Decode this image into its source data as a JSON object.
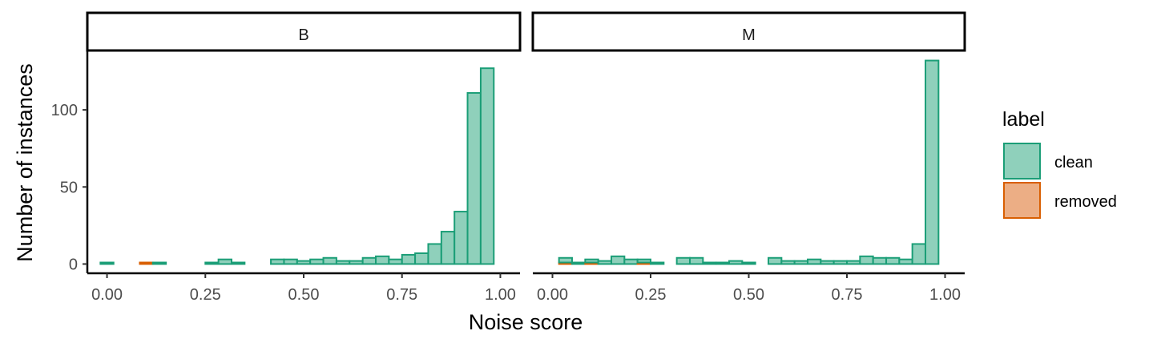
{
  "chart_data": {
    "type": "bar",
    "subtype": "faceted histogram (stacked)",
    "xlabel": "Noise score",
    "ylabel": "Number of instances",
    "x_ticks": [
      0,
      0.25,
      0.5,
      0.75,
      1
    ],
    "x_tick_labels": [
      "0.00",
      "0.25",
      "0.50",
      "0.75",
      "1.00"
    ],
    "y_ticks": [
      0,
      50,
      100
    ],
    "y_tick_labels": [
      "0",
      "50",
      "100"
    ],
    "xlim": [
      -0.05,
      1.05
    ],
    "ylim": [
      -6,
      138
    ],
    "bin_width": 0.0333,
    "grid": false,
    "legend": {
      "title": "label",
      "position": "right",
      "entries": [
        {
          "name": "clean",
          "fill": "#8fd0bb",
          "stroke": "#1b9e77"
        },
        {
          "name": "removed",
          "fill": "#ecae85",
          "stroke": "#d95f02"
        }
      ]
    },
    "colors": {
      "clean_fill": "#8fd0bb",
      "clean_stroke": "#1b9e77",
      "removed_fill": "#ecae85",
      "removed_stroke": "#d95f02",
      "strip_border": "#000000"
    },
    "panels": [
      {
        "strip": "B",
        "x": [
          0.0,
          0.0333,
          0.0667,
          0.1,
          0.1333,
          0.1667,
          0.2,
          0.2333,
          0.2667,
          0.3,
          0.3333,
          0.3667,
          0.4,
          0.4333,
          0.4667,
          0.5,
          0.5333,
          0.5667,
          0.6,
          0.6333,
          0.6667,
          0.7,
          0.7333,
          0.7667,
          0.8,
          0.8333,
          0.8667,
          0.9,
          0.9333,
          0.9667,
          1.0
        ],
        "series": [
          {
            "name": "clean",
            "values": [
              1,
              0,
              0,
              0,
              1,
              0,
              0,
              0,
              1,
              3,
              1,
              0,
              0,
              3,
              3,
              2,
              3,
              4,
              2,
              2,
              4,
              5,
              3,
              6,
              7,
              13,
              21,
              34,
              111,
              127,
              0
            ]
          },
          {
            "name": "removed",
            "values": [
              0,
              0,
              0,
              1,
              0,
              0,
              0,
              0,
              0,
              0,
              0,
              0,
              0,
              0,
              0,
              0,
              0,
              0,
              0,
              0,
              0,
              0,
              0,
              0,
              0,
              0,
              0,
              0,
              0,
              0,
              0
            ]
          }
        ]
      },
      {
        "strip": "M",
        "x": [
          0.0,
          0.0333,
          0.0667,
          0.1,
          0.1333,
          0.1667,
          0.2,
          0.2333,
          0.2667,
          0.3,
          0.3333,
          0.3667,
          0.4,
          0.4333,
          0.4667,
          0.5,
          0.5333,
          0.5667,
          0.6,
          0.6333,
          0.6667,
          0.7,
          0.7333,
          0.7667,
          0.8,
          0.8333,
          0.8667,
          0.9,
          0.9333,
          0.9667,
          1.0
        ],
        "series": [
          {
            "name": "clean",
            "values": [
              0,
              3,
              1,
              2,
              2,
              5,
              3,
              2,
              1,
              0,
              4,
              4,
              1,
              1,
              2,
              1,
              0,
              4,
              2,
              2,
              3,
              2,
              2,
              2,
              5,
              4,
              4,
              3,
              13,
              132,
              0
            ]
          },
          {
            "name": "removed",
            "values": [
              0,
              1,
              0,
              1,
              0,
              0,
              0,
              1,
              0,
              0,
              0,
              0,
              0,
              0,
              0,
              0,
              0,
              0,
              0,
              0,
              0,
              0,
              0,
              0,
              0,
              0,
              0,
              0,
              0,
              0,
              0
            ]
          }
        ]
      }
    ]
  }
}
